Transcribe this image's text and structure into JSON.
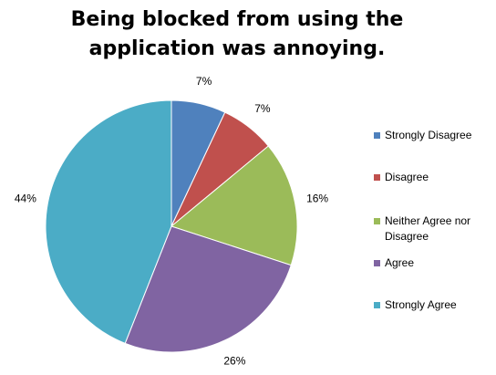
{
  "chart_data": {
    "type": "pie",
    "title": "Being blocked from using the\napplication was annoying.",
    "categories": [
      "Strongly Disagree",
      "Disagree",
      "Neither Agree nor Disagree",
      "Agree",
      "Strongly Agree"
    ],
    "values": [
      7,
      7,
      16,
      26,
      44
    ],
    "data_labels": [
      "7%",
      "7%",
      "16%",
      "26%",
      "44%"
    ],
    "colors": [
      "#4F81BD",
      "#C0504D",
      "#9BBB59",
      "#8064A2",
      "#4BACC6"
    ],
    "legend": "right",
    "start_angle": "12 o'clock",
    "direction": "clockwise"
  }
}
